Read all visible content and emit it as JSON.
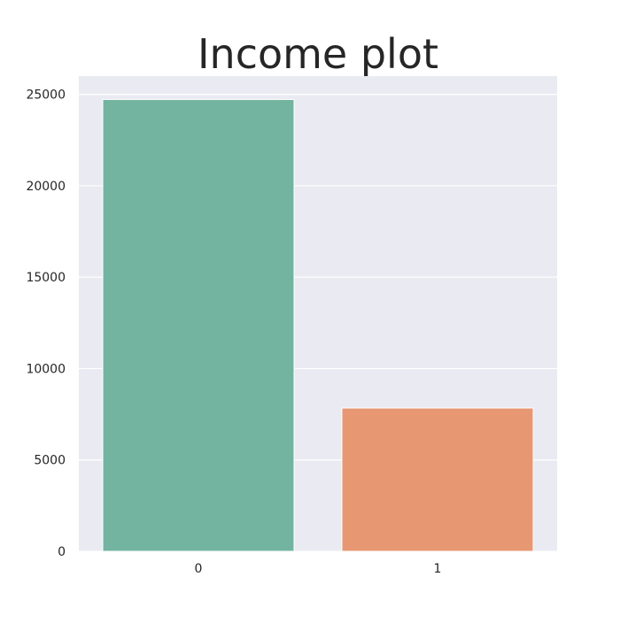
{
  "chart_data": {
    "type": "bar",
    "title": "Income plot",
    "xlabel": "",
    "ylabel": "",
    "categories": [
      "0",
      "1"
    ],
    "values": [
      24720,
      7841
    ],
    "ylim": [
      0,
      26000
    ],
    "yticks": [
      0,
      5000,
      10000,
      15000,
      20000,
      25000
    ],
    "ytick_labels": [
      "0",
      "5000",
      "10000",
      "15000",
      "20000",
      "25000"
    ],
    "grid": true,
    "legend": "none",
    "colors": [
      "#73b4a0",
      "#e89773"
    ],
    "plot_background": "#eaeaf2",
    "grid_color": "#ffffff"
  }
}
